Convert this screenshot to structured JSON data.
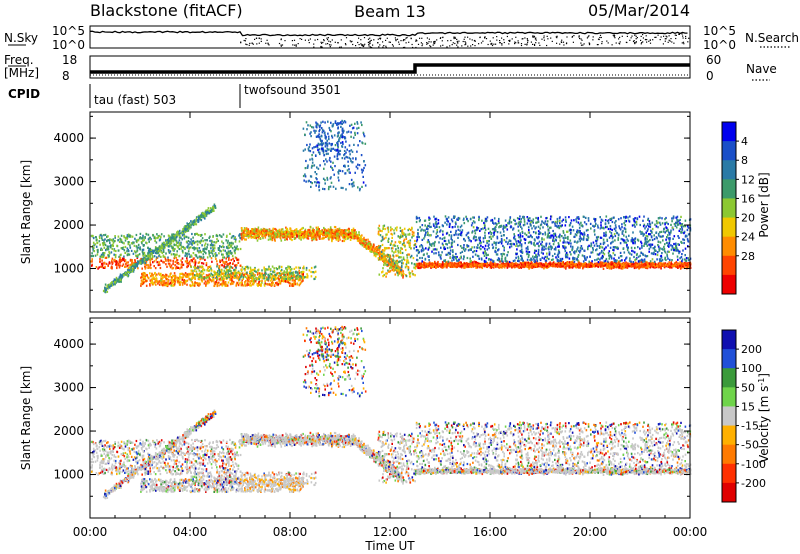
{
  "header": {
    "radar": "Blackstone (fitACF)",
    "beam": "Beam 13",
    "date": "05/Mar/2014"
  },
  "status_panels": {
    "nsky_label": "N.Sky",
    "nsky_ticks": [
      "10^5",
      "10^0"
    ],
    "nsearch_label": "N.Search",
    "nsearch_ticks": [
      "10^5",
      "10^0"
    ],
    "freq_label": "Freq.",
    "freq_unit": "[MHz]",
    "freq_ticks": [
      "18",
      "8"
    ],
    "nave_label": "Nave",
    "nave_ticks": [
      "60",
      "0"
    ],
    "cpid_label": "CPID",
    "cpid_modes": [
      {
        "name": "tau (fast) 503",
        "start_hour": 0
      },
      {
        "name": "twofsound 3501",
        "start_hour": 6
      }
    ]
  },
  "chart_data": [
    {
      "type": "heatmap",
      "quantity": "Power",
      "ylabel": "Slant Range [km]",
      "xlabel": "Time UT",
      "ylim": [
        0,
        4600
      ],
      "yticks": [
        1000,
        2000,
        3000,
        4000
      ],
      "xlim_hours": [
        0,
        24
      ],
      "x_tick_labels": [
        "00:00",
        "04:00",
        "08:00",
        "12:00",
        "16:00",
        "20:00",
        "00:00"
      ],
      "colorbar": {
        "title": "Power [dB]",
        "tick_labels": [
          "4",
          "8",
          "12",
          "16",
          "20",
          "24",
          "28"
        ],
        "colors": [
          "#0000ee",
          "#1a4fc8",
          "#2a7aa6",
          "#3c9a6a",
          "#8cc832",
          "#f0c800",
          "#ff8c00",
          "#ff4400",
          "#ee0000"
        ]
      },
      "features": [
        {
          "description": "ground scatter band",
          "range_km": [
            1000,
            1800
          ],
          "hours": [
            0,
            6
          ]
        },
        {
          "description": "rising slanted echoes",
          "range_km": [
            600,
            2600
          ],
          "hours": [
            0.5,
            5
          ]
        },
        {
          "description": "low-range band",
          "range_km": [
            600,
            900
          ],
          "hours": [
            2,
            8.5
          ]
        },
        {
          "description": "upper band",
          "range_km": [
            1600,
            2000
          ],
          "hours": [
            6,
            12.5
          ]
        },
        {
          "description": "sparse high-range echoes",
          "range_km": [
            2800,
            4400
          ],
          "hours": [
            8.5,
            11
          ]
        },
        {
          "description": "strong band after frequency switch",
          "range_km": [
            950,
            1200
          ],
          "hours": [
            13,
            24
          ]
        }
      ]
    },
    {
      "type": "heatmap",
      "quantity": "Velocity",
      "ylabel": "Slant Range [km]",
      "xlabel": "Time UT",
      "ylim": [
        0,
        4600
      ],
      "yticks": [
        1000,
        2000,
        3000,
        4000
      ],
      "xlim_hours": [
        0,
        24
      ],
      "x_tick_labels": [
        "00:00",
        "04:00",
        "08:00",
        "12:00",
        "16:00",
        "20:00",
        "00:00"
      ],
      "colorbar": {
        "title_main": "Velocity [m s",
        "title_sup": "-1",
        "title_end": "]",
        "tick_labels": [
          "200",
          "100",
          "50",
          "15",
          "-15",
          "-50",
          "-100",
          "-200"
        ],
        "colors": [
          "#1010b0",
          "#2050d8",
          "#3a9a3a",
          "#6fd44a",
          "#c8c8c8",
          "#ffb000",
          "#ff7a00",
          "#ff3000",
          "#e00000"
        ]
      }
    }
  ]
}
